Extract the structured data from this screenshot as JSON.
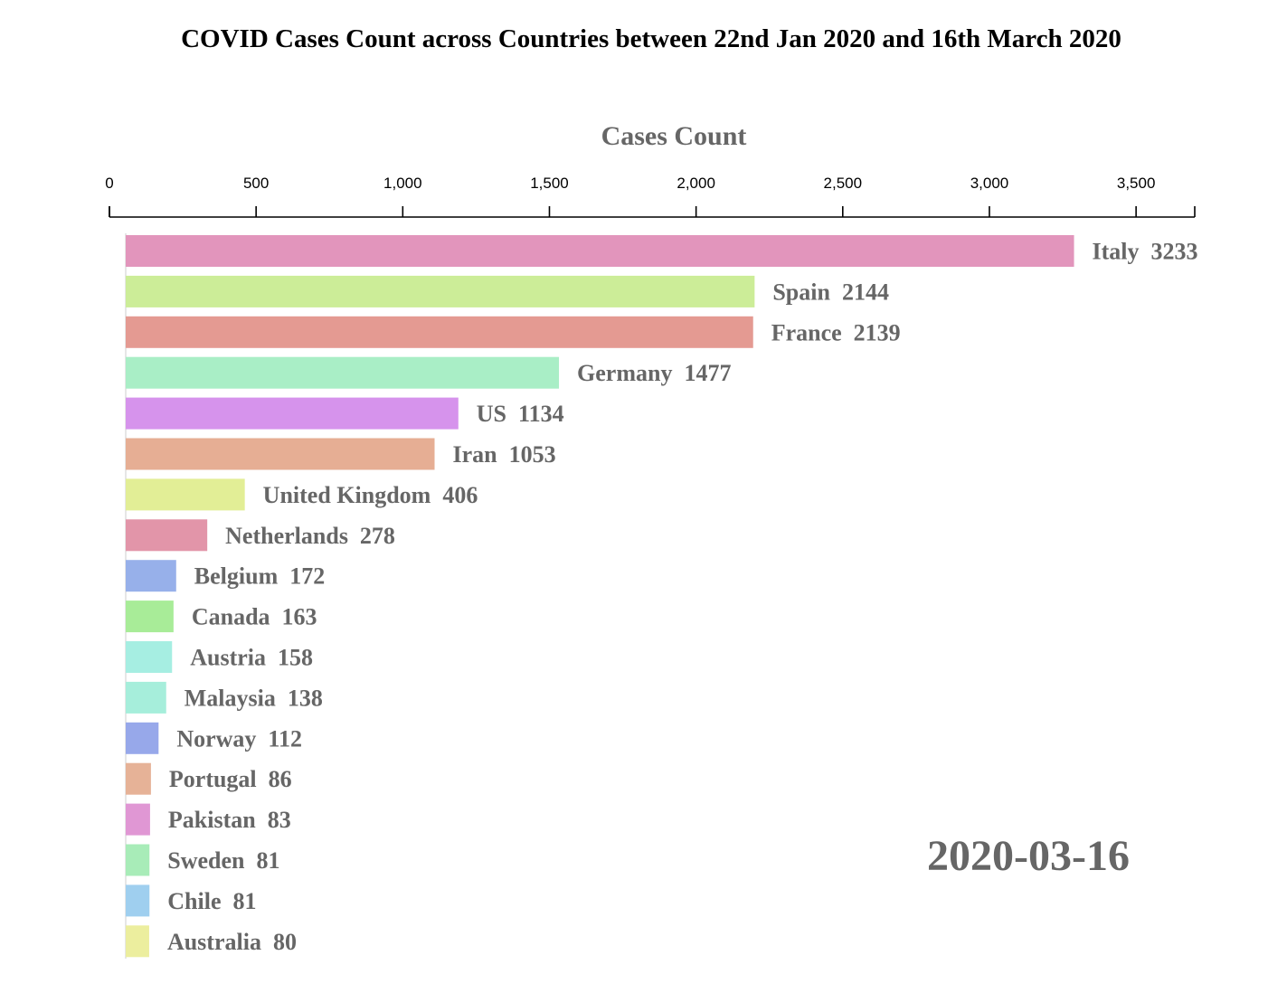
{
  "chart_data": {
    "type": "bar",
    "orientation": "horizontal",
    "title": "COVID Cases Count across Countries between 22nd Jan 2020 and 16th March 2020",
    "xlabel": "Cases Count",
    "ylabel": "",
    "xlim": [
      0,
      3700
    ],
    "x_ticks": [
      0,
      500,
      1000,
      1500,
      2000,
      2500,
      3000,
      3500
    ],
    "x_tick_labels": [
      "0",
      "500",
      "1,000",
      "1,500",
      "2,000",
      "2,500",
      "3,000",
      "3,500"
    ],
    "axis_position": "top",
    "grid": false,
    "date": "2020-03-16",
    "bars": [
      {
        "country": "Italy",
        "value": 3233,
        "color": "#e295bc"
      },
      {
        "country": "Spain",
        "value": 2144,
        "color": "#cced98"
      },
      {
        "country": "France",
        "value": 2139,
        "color": "#e49a92"
      },
      {
        "country": "Germany",
        "value": 1477,
        "color": "#a9eec6"
      },
      {
        "country": "US",
        "value": 1134,
        "color": "#d693ec"
      },
      {
        "country": "Iran",
        "value": 1053,
        "color": "#e6ae94"
      },
      {
        "country": "United Kingdom",
        "value": 406,
        "color": "#e2ee96"
      },
      {
        "country": "Netherlands",
        "value": 278,
        "color": "#e295a9"
      },
      {
        "country": "Belgium",
        "value": 172,
        "color": "#97b0ea"
      },
      {
        "country": "Canada",
        "value": 163,
        "color": "#a8ec98"
      },
      {
        "country": "Austria",
        "value": 158,
        "color": "#a6eee2"
      },
      {
        "country": "Malaysia",
        "value": 138,
        "color": "#a6eedb"
      },
      {
        "country": "Norway",
        "value": 112,
        "color": "#97a8ea"
      },
      {
        "country": "Portugal",
        "value": 86,
        "color": "#e6b297"
      },
      {
        "country": "Pakistan",
        "value": 83,
        "color": "#e097d4"
      },
      {
        "country": "Sweden",
        "value": 81,
        "color": "#a8ecb8"
      },
      {
        "country": "Chile",
        "value": 81,
        "color": "#9fcfef"
      },
      {
        "country": "Australia",
        "value": 80,
        "color": "#ecee9e"
      }
    ]
  }
}
